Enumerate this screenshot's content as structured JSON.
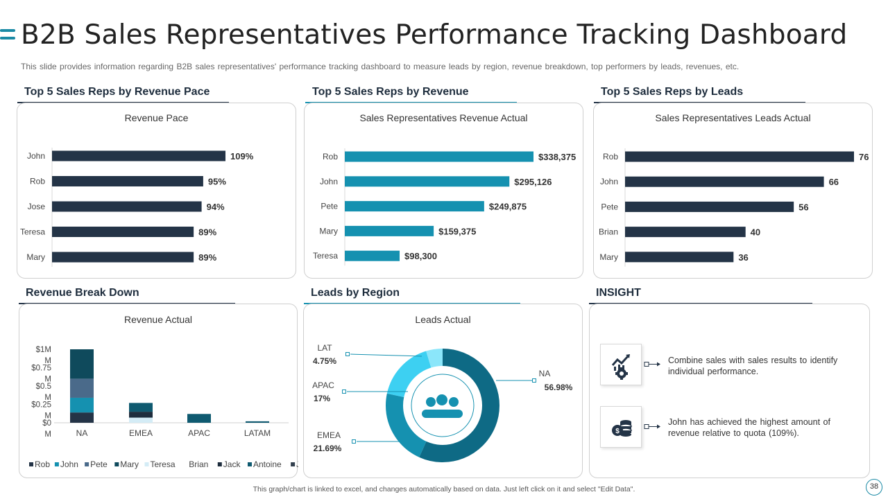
{
  "slide": {
    "title": "B2B Sales Representatives Performance Tracking Dashboard",
    "subtitle": "This slide provides information regarding B2B sales representatives' performance tracking dashboard to measure leads by region, revenue breakdown, top performers by leads, revenues, etc.",
    "footer": "This graph/chart is linked to excel, and changes automatically based on data. Just left click on it and select \"Edit Data\".",
    "page_number": "38"
  },
  "sections": {
    "revenue_pace": "Top 5 Sales Reps by Revenue Pace",
    "revenue": "Top 5 Sales Reps by Revenue",
    "leads": "Top 5 Sales Reps by Leads",
    "breakdown": "Revenue Break Down",
    "region": "Leads by Region",
    "insight": "INSIGHT"
  },
  "insights": [
    {
      "icon": "growth-gear-icon",
      "text": "Combine sales with sales results to identify individual performance."
    },
    {
      "icon": "coins-dollar-icon",
      "text": "John has achieved the highest amount of revenue relative to quota (109%)."
    }
  ],
  "colors": {
    "dark": "#243447",
    "teal": "#1591b0",
    "accent": "#1b8aa5"
  },
  "chart_data": [
    {
      "id": "pace",
      "type": "bar",
      "orientation": "horizontal",
      "title": "Revenue Pace",
      "categories": [
        "John",
        "Rob",
        "Jose",
        "Teresa",
        "Mary"
      ],
      "values": [
        109,
        95,
        94,
        89,
        89
      ],
      "labels": [
        "109%",
        "95%",
        "94%",
        "89%",
        "89%"
      ],
      "xlim": [
        0,
        109
      ],
      "color": "#243447"
    },
    {
      "id": "revenue",
      "type": "bar",
      "orientation": "horizontal",
      "title": "Sales Representatives Revenue Actual",
      "categories": [
        "Rob",
        "John",
        "Pete",
        "Mary",
        "Teresa"
      ],
      "values": [
        338375,
        295126,
        249875,
        159375,
        98300
      ],
      "labels": [
        "$338,375",
        "$295,126",
        "$249,875",
        "$159,375",
        "$98,300"
      ],
      "xlim": [
        0,
        338375
      ],
      "color": "#1591b0"
    },
    {
      "id": "leads",
      "type": "bar",
      "orientation": "horizontal",
      "title": "Sales Representatives Leads Actual",
      "categories": [
        "Rob",
        "John",
        "Pete",
        "Brian",
        "Mary"
      ],
      "values": [
        76,
        66,
        56,
        40,
        36
      ],
      "labels": [
        "76",
        "66",
        "56",
        "40",
        "36"
      ],
      "xlim": [
        0,
        76
      ],
      "color": "#243447"
    },
    {
      "id": "breakdown",
      "type": "bar",
      "stacked": true,
      "title": "Revenue Actual",
      "categories": [
        "NA",
        "EMEA",
        "APAC",
        "LATAM"
      ],
      "ylim": [
        0,
        1
      ],
      "yticks": [
        "$0",
        "$0.25",
        "$0.5",
        "$0.75",
        "$1M"
      ],
      "ytick_suffix": "M",
      "series": [
        {
          "name": "Rob",
          "color": "#243447",
          "values": [
            0.14,
            0.0,
            0.0,
            0.0
          ]
        },
        {
          "name": "John",
          "color": "#1591b0",
          "values": [
            0.2,
            0.0,
            0.0,
            0.0
          ]
        },
        {
          "name": "Pete",
          "color": "#4a6a8a",
          "values": [
            0.26,
            0.0,
            0.0,
            0.0
          ]
        },
        {
          "name": "Mary",
          "color": "#0f4a5c",
          "values": [
            0.4,
            0.0,
            0.0,
            0.0
          ]
        },
        {
          "name": "Teresa",
          "color": "#d4ecf6",
          "values": [
            0.0,
            0.07,
            0.0,
            0.0
          ]
        },
        {
          "name": "Brian",
          "color": "#ffffff",
          "values": [
            0.0,
            0.0,
            0.0,
            0.0
          ]
        },
        {
          "name": "Jack",
          "color": "#1e2d3d",
          "values": [
            0.0,
            0.08,
            0.0,
            0.0
          ]
        },
        {
          "name": "Antoine",
          "color": "#0f5a70",
          "values": [
            0.0,
            0.12,
            0.12,
            0.02
          ]
        },
        {
          "name": "Jord",
          "color": "#33404e",
          "values": [
            0.0,
            0.0,
            0.0,
            0.0
          ]
        }
      ]
    },
    {
      "id": "region",
      "type": "pie",
      "donut": true,
      "title": "Leads Actual",
      "slices": [
        {
          "name": "NA",
          "value": 56.98,
          "label": "56.98%",
          "color": "#0e6a85"
        },
        {
          "name": "EMEA",
          "value": 21.69,
          "label": "21.69%",
          "color": "#1591b0"
        },
        {
          "name": "APAC",
          "value": 17,
          "label": "17%",
          "color": "#3dd0f2"
        },
        {
          "name": "LAT",
          "value": 4.75,
          "label": "4.75%",
          "color": "#8be6fa"
        }
      ]
    }
  ]
}
